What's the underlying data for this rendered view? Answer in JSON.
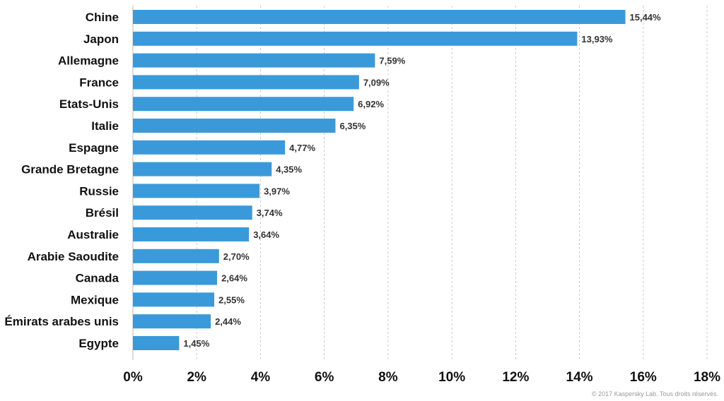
{
  "chart_data": {
    "type": "bar",
    "orientation": "horizontal",
    "categories": [
      "Chine",
      "Japon",
      "Allemagne",
      "France",
      "Etats-Unis",
      "Italie",
      "Espagne",
      "Grande Bretagne",
      "Russie",
      "Brésil",
      "Australie",
      "Arabie Saoudite",
      "Canada",
      "Mexique",
      "Émirats arabes unis",
      "Egypte"
    ],
    "values": [
      15.44,
      13.93,
      7.59,
      7.09,
      6.92,
      6.35,
      4.77,
      4.35,
      3.97,
      3.74,
      3.64,
      2.7,
      2.64,
      2.55,
      2.44,
      1.45
    ],
    "value_labels": [
      "15,44%",
      "13,93%",
      "7,59%",
      "7,09%",
      "6,92%",
      "6,35%",
      "4,77%",
      "4,35%",
      "3,97%",
      "3,74%",
      "3,64%",
      "2,70%",
      "2,64%",
      "2,55%",
      "2,44%",
      "1,45%"
    ],
    "xlim": [
      0,
      18
    ],
    "xticks": [
      0,
      2,
      4,
      6,
      8,
      10,
      12,
      14,
      16,
      18
    ],
    "xtick_labels": [
      "0%",
      "2%",
      "4%",
      "6%",
      "8%",
      "10%",
      "12%",
      "14%",
      "16%",
      "18%"
    ],
    "title": "",
    "xlabel": "",
    "ylabel": "",
    "grid": true,
    "bar_color": "#3a9ad9"
  },
  "footer": {
    "copyright": "© 2017 Kaspersky Lab. Tous droits réservés."
  }
}
